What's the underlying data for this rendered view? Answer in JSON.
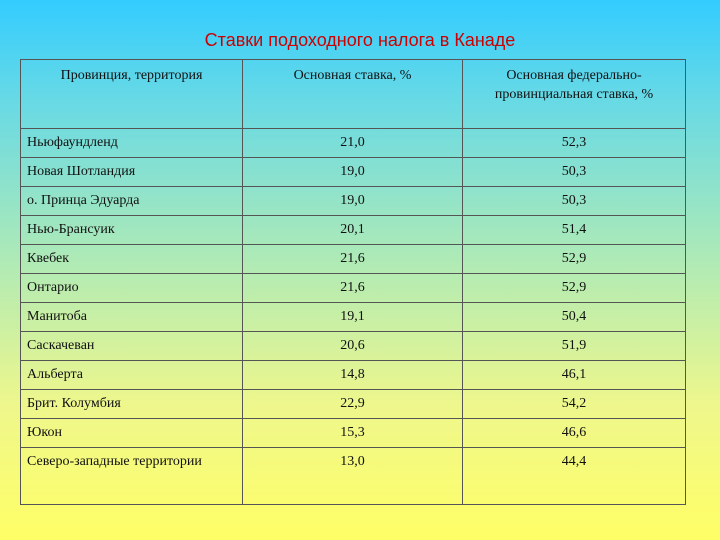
{
  "title": "Ставки подоходного налога в Канаде",
  "table": {
    "headers": [
      "Провинция, территория",
      "Основная ставка, %",
      "Основная федерально-провинциальная ставка, %"
    ],
    "rows": [
      {
        "province": "Ньюфаундленд",
        "base_rate": "21,0",
        "combined_rate": "52,3"
      },
      {
        "province": "Новая Шотландия",
        "base_rate": "19,0",
        "combined_rate": "50,3"
      },
      {
        "province": "о. Принца Эдуарда",
        "base_rate": "19,0",
        "combined_rate": "50,3"
      },
      {
        "province": "Нью-Брансуик",
        "base_rate": "20,1",
        "combined_rate": "51,4"
      },
      {
        "province": "Квебек",
        "base_rate": "21,6",
        "combined_rate": "52,9"
      },
      {
        "province": "Онтарио",
        "base_rate": "21,6",
        "combined_rate": "52,9"
      },
      {
        "province": "Манитоба",
        "base_rate": "19,1",
        "combined_rate": "50,4"
      },
      {
        "province": "Саскачеван",
        "base_rate": "20,6",
        "combined_rate": "51,9"
      },
      {
        "province": "Альберта",
        "base_rate": "14,8",
        "combined_rate": "46,1"
      },
      {
        "province": "Брит. Колумбия",
        "base_rate": "22,9",
        "combined_rate": "54,2"
      },
      {
        "province": "Юкон",
        "base_rate": "15,3",
        "combined_rate": "46,6"
      },
      {
        "province": "Северо-западные территории",
        "base_rate": "13,0",
        "combined_rate": "44,4"
      }
    ]
  }
}
